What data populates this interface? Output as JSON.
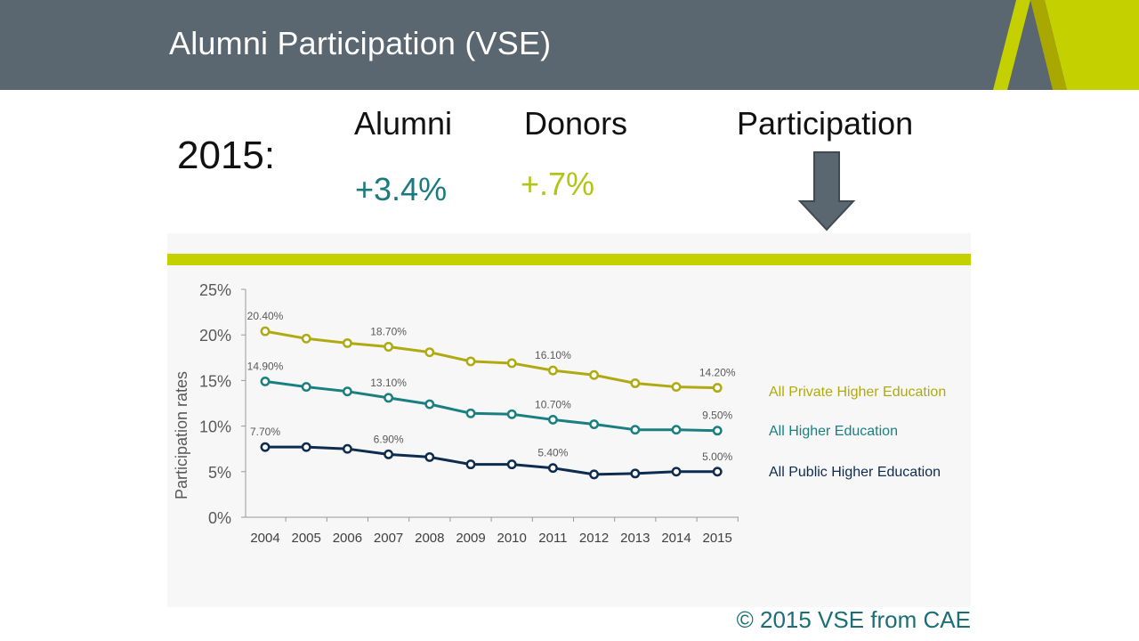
{
  "header": {
    "title": "Alumni Participation (VSE)"
  },
  "stats": {
    "year": "2015:",
    "alumni": {
      "label": "Alumni",
      "value": "+3.4%"
    },
    "donors": {
      "label": "Donors",
      "value": "+.7%"
    },
    "participation": {
      "label": "Participation"
    }
  },
  "footer": {
    "copyright": "© 2015 VSE from CAE"
  },
  "colors": {
    "header_bg": "#5a6670",
    "accent": "#c4d000",
    "private": "#b0aa12",
    "all": "#1a7f80",
    "public": "#0e2c4e"
  },
  "chart_data": {
    "type": "line",
    "title": "",
    "xlabel": "",
    "ylabel": "Participation rates",
    "ylim": [
      0,
      25
    ],
    "y_ticks": [
      "0%",
      "5%",
      "10%",
      "15%",
      "20%",
      "25%"
    ],
    "categories": [
      "2004",
      "2005",
      "2006",
      "2007",
      "2008",
      "2009",
      "2010",
      "2011",
      "2012",
      "2013",
      "2014",
      "2015"
    ],
    "grid": false,
    "legend": "right",
    "series": [
      {
        "name": "All Private Higher Education",
        "color": "#b0aa12",
        "values": [
          20.4,
          19.6,
          19.1,
          18.7,
          18.1,
          17.1,
          16.9,
          16.1,
          15.6,
          14.7,
          14.3,
          14.2
        ],
        "data_labels": {
          "0": "20.40%",
          "3": "18.70%",
          "7": "16.10%",
          "11": "14.20%"
        }
      },
      {
        "name": "All Higher Education",
        "color": "#1a7f80",
        "values": [
          14.9,
          14.3,
          13.8,
          13.1,
          12.4,
          11.4,
          11.3,
          10.7,
          10.2,
          9.6,
          9.6,
          9.5
        ],
        "data_labels": {
          "0": "14.90%",
          "3": "13.10%",
          "7": "10.70%",
          "11": "9.50%"
        }
      },
      {
        "name": "All Public Higher Education",
        "color": "#0e2c4e",
        "values": [
          7.7,
          7.7,
          7.5,
          6.9,
          6.6,
          5.8,
          5.8,
          5.4,
          4.7,
          4.8,
          5.0,
          5.0
        ],
        "data_labels": {
          "0": "7.70%",
          "3": "6.90%",
          "7": "5.40%",
          "11": "5.00%"
        }
      }
    ]
  }
}
